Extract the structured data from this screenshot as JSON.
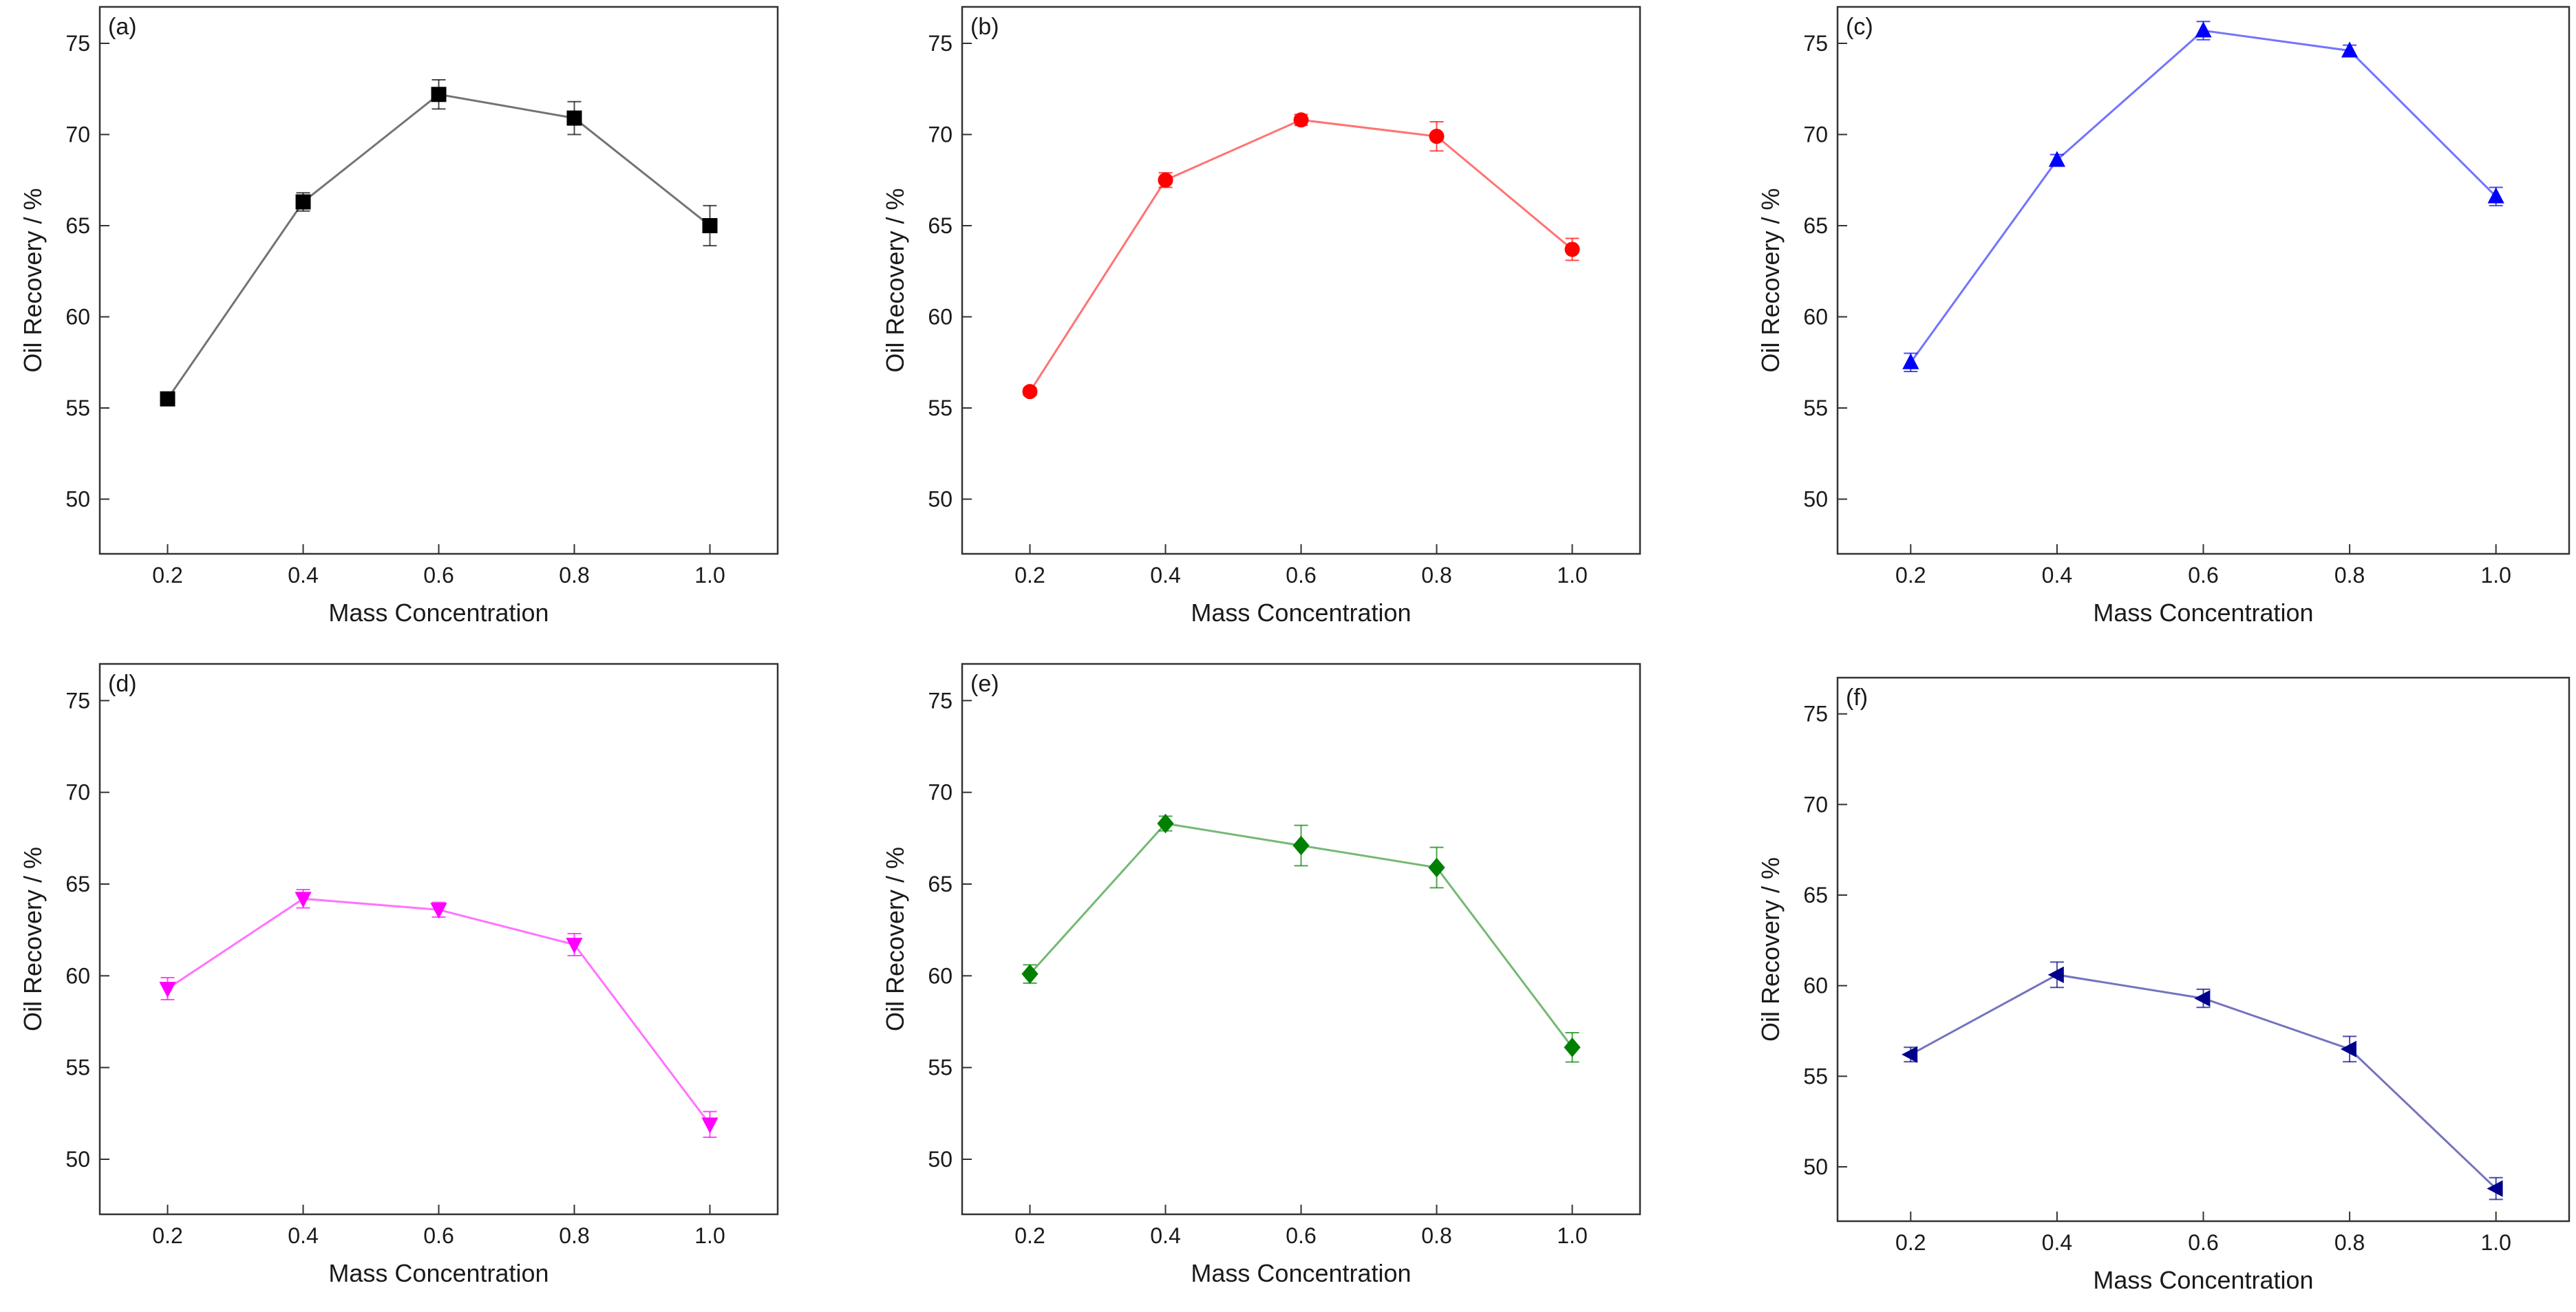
{
  "chart_data": [
    {
      "type": "line",
      "label": "(a)",
      "color": "#000000",
      "marker": "square",
      "xlabel": "Mass Concentration",
      "ylabel": "Oil Recovery / %",
      "xlim": [
        0.1,
        1.1
      ],
      "ylim": [
        47,
        77
      ],
      "x": [
        0.2,
        0.4,
        0.6,
        0.8,
        1.0
      ],
      "x_ticks": [
        "0.2",
        "0.4",
        "0.6",
        "0.8",
        "1.0"
      ],
      "y_ticks": [
        "50",
        "55",
        "60",
        "65",
        "70",
        "75"
      ],
      "series": [
        {
          "name": "(a)",
          "values": [
            55.5,
            66.3,
            72.2,
            70.9,
            65.0
          ],
          "errors": [
            0.3,
            0.5,
            0.8,
            0.9,
            1.1
          ]
        }
      ]
    },
    {
      "type": "line",
      "label": "(b)",
      "color": "#ff0000",
      "marker": "circle",
      "xlabel": "Mass Concentration",
      "ylabel": "Oil Recovery / %",
      "xlim": [
        0.1,
        1.1
      ],
      "ylim": [
        47,
        77
      ],
      "x": [
        0.2,
        0.4,
        0.6,
        0.8,
        1.0
      ],
      "x_ticks": [
        "0.2",
        "0.4",
        "0.6",
        "0.8",
        "1.0"
      ],
      "y_ticks": [
        "50",
        "55",
        "60",
        "65",
        "70",
        "75"
      ],
      "series": [
        {
          "name": "(b)",
          "values": [
            55.9,
            67.5,
            70.8,
            69.9,
            63.7
          ],
          "errors": [
            0.2,
            0.4,
            0.3,
            0.8,
            0.6
          ]
        }
      ]
    },
    {
      "type": "line",
      "label": "(c)",
      "color": "#0000ff",
      "marker": "triangle-up",
      "xlabel": "Mass Concentration",
      "ylabel": "Oil Recovery / %",
      "xlim": [
        0.1,
        1.1
      ],
      "ylim": [
        47,
        77
      ],
      "x": [
        0.2,
        0.4,
        0.6,
        0.8,
        1.0
      ],
      "x_ticks": [
        "0.2",
        "0.4",
        "0.6",
        "0.8",
        "1.0"
      ],
      "y_ticks": [
        "50",
        "55",
        "60",
        "65",
        "70",
        "75"
      ],
      "series": [
        {
          "name": "(c)",
          "values": [
            57.5,
            68.6,
            75.7,
            74.6,
            66.6
          ],
          "errors": [
            0.5,
            0.3,
            0.5,
            0.3,
            0.5
          ]
        }
      ]
    },
    {
      "type": "line",
      "label": "(d)",
      "color": "#ff00ff",
      "marker": "triangle-down",
      "xlabel": "Mass Concentration",
      "ylabel": "Oil Recovery / %",
      "xlim": [
        0.1,
        1.1
      ],
      "ylim": [
        47,
        77
      ],
      "x": [
        0.2,
        0.4,
        0.6,
        0.8,
        1.0
      ],
      "x_ticks": [
        "0.2",
        "0.4",
        "0.6",
        "0.8",
        "1.0"
      ],
      "y_ticks": [
        "50",
        "55",
        "60",
        "65",
        "70",
        "75"
      ],
      "series": [
        {
          "name": "(d)",
          "values": [
            59.3,
            64.2,
            63.6,
            61.7,
            51.9
          ],
          "errors": [
            0.6,
            0.5,
            0.4,
            0.6,
            0.7
          ]
        }
      ]
    },
    {
      "type": "line",
      "label": "(e)",
      "color": "#008000",
      "marker": "diamond",
      "xlabel": "Mass Concentration",
      "ylabel": "Oil Recovery / %",
      "xlim": [
        0.1,
        1.1
      ],
      "ylim": [
        47,
        77
      ],
      "x": [
        0.2,
        0.4,
        0.6,
        0.8,
        1.0
      ],
      "x_ticks": [
        "0.2",
        "0.4",
        "0.6",
        "0.8",
        "1.0"
      ],
      "y_ticks": [
        "50",
        "55",
        "60",
        "65",
        "70",
        "75"
      ],
      "series": [
        {
          "name": "(e)",
          "values": [
            60.1,
            68.3,
            67.1,
            65.9,
            56.1
          ],
          "errors": [
            0.5,
            0.4,
            1.1,
            1.1,
            0.8
          ]
        }
      ]
    },
    {
      "type": "line",
      "label": "(f)",
      "color": "#00008b",
      "marker": "triangle-left",
      "xlabel": "Mass Concentration",
      "ylabel": "Oil Recovery / %",
      "xlim": [
        0.1,
        1.1
      ],
      "ylim": [
        47,
        77
      ],
      "x": [
        0.2,
        0.4,
        0.6,
        0.8,
        1.0
      ],
      "x_ticks": [
        "0.2",
        "0.4",
        "0.6",
        "0.8",
        "1.0"
      ],
      "y_ticks": [
        "50",
        "55",
        "60",
        "65",
        "70",
        "75"
      ],
      "series": [
        {
          "name": "(f)",
          "values": [
            56.2,
            60.6,
            59.3,
            56.5,
            48.8
          ],
          "errors": [
            0.4,
            0.7,
            0.5,
            0.7,
            0.6
          ]
        }
      ]
    }
  ]
}
